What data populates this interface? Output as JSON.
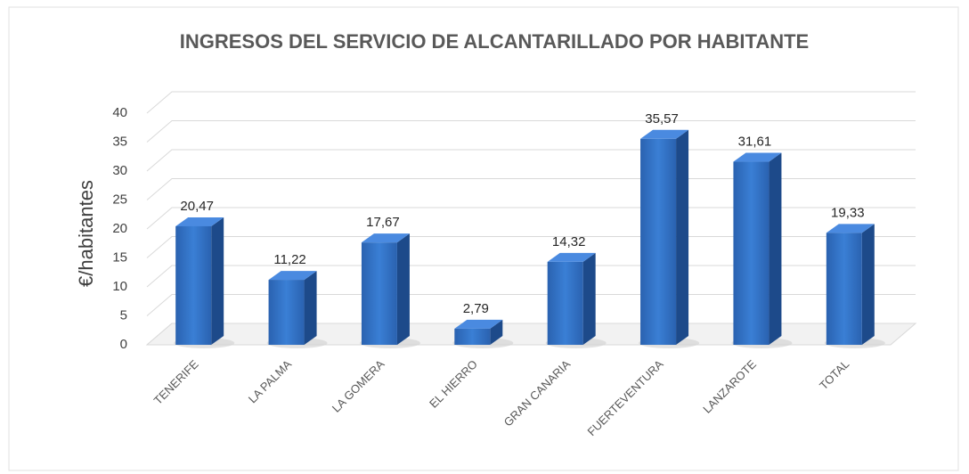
{
  "chart_data": {
    "type": "bar3d",
    "title": "INGRESOS DEL SERVICIO DE ALCANTARILLADO POR HABITANTE",
    "y_label": "€/habitantes",
    "categories": [
      "TENERIFE",
      "LA PALMA",
      "LA GOMERA",
      "EL HIERRO",
      "GRAN CANARIA",
      "FUERTEVENTURA",
      "LANZAROTE",
      "TOTAL"
    ],
    "values": [
      20.47,
      11.22,
      17.67,
      2.79,
      14.32,
      35.57,
      31.61,
      19.33
    ],
    "value_labels": [
      "20,47",
      "11,22",
      "17,67",
      "2,79",
      "14,32",
      "35,57",
      "31,61",
      "19,33"
    ],
    "color": "#2f6ec2",
    "ylim": [
      0,
      40
    ],
    "yticks": [
      0,
      5,
      10,
      15,
      20,
      25,
      30,
      35,
      40
    ],
    "grid": true
  }
}
